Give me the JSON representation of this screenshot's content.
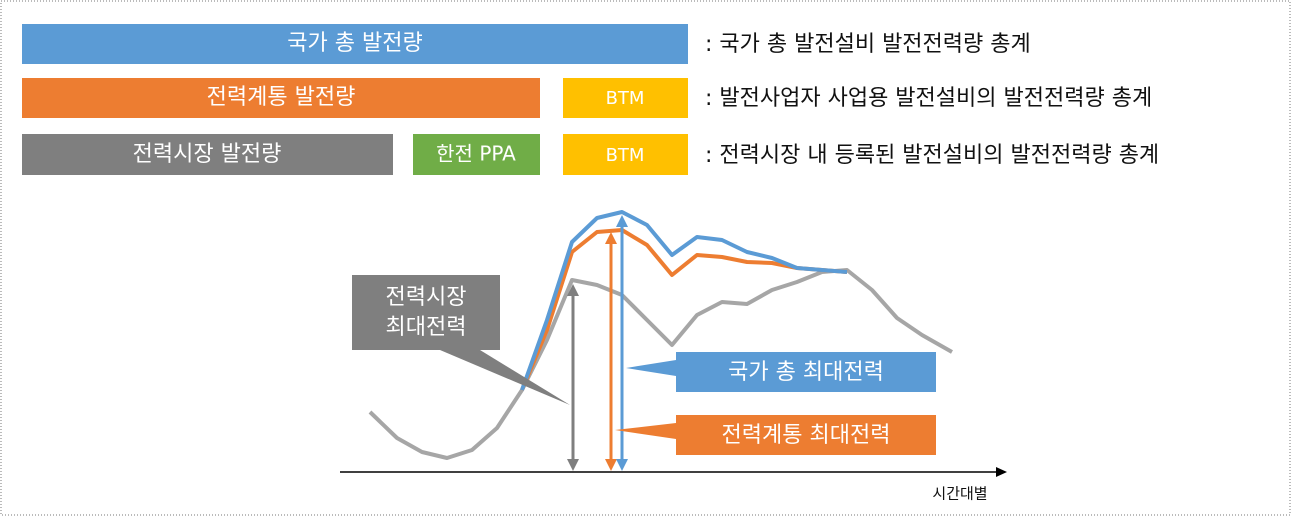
{
  "rows": [
    {
      "bars": [
        "국가 총 발전량"
      ],
      "description": ": 국가 총 발전설비 발전전력량 총계"
    },
    {
      "bars": [
        "전력계통 발전량",
        "BTM"
      ],
      "description": ": 발전사업자 사업용 발전설비의 발전전력량 총계"
    },
    {
      "bars": [
        "전력시장 발전량",
        "한전 PPA",
        "BTM"
      ],
      "description": ": 전력시장 내 등록된 발전설비의 발전전력량 총계"
    }
  ],
  "callouts": {
    "market_peak": [
      "전력시장",
      "최대전력"
    ],
    "national_peak": "국가 총 최대전력",
    "grid_peak": "전력계통 최대전력"
  },
  "axis_label": "시간대별"
}
